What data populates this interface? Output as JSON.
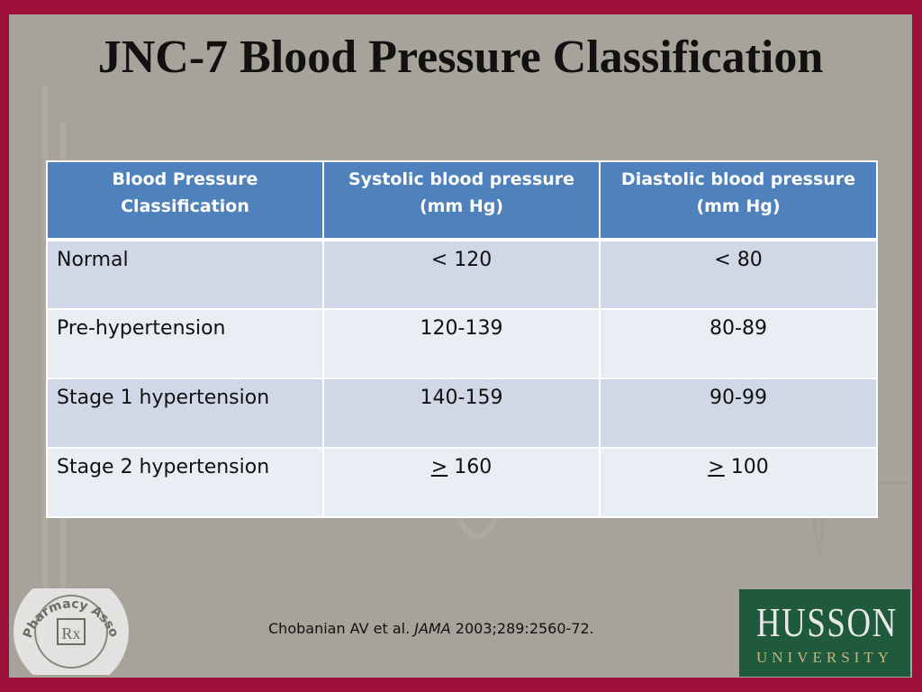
{
  "title": "JNC-7 Blood Pressure Classification",
  "table": {
    "headers": [
      {
        "line1": "Blood Pressure",
        "line2": "Classification"
      },
      {
        "line1": "Systolic blood pressure",
        "line2": "(mm Hg)"
      },
      {
        "line1": "Diastolic blood pressure",
        "line2": "(mm Hg)"
      }
    ],
    "rows": [
      {
        "classification": "Normal",
        "systolic": "< 120",
        "diastolic": "< 80"
      },
      {
        "classification": "Pre-hypertension",
        "systolic": "120-139",
        "diastolic": "80-89"
      },
      {
        "classification": "Stage 1 hypertension",
        "systolic": "140-159",
        "diastolic": "90-99"
      },
      {
        "classification": "Stage 2 hypertension",
        "systolic_symbol": ">",
        "systolic": "160",
        "diastolic_symbol": ">",
        "diastolic": "100"
      }
    ]
  },
  "citation": {
    "authors": "Chobanian AV et al.",
    "journal": "JAMA",
    "details": "2003;289:2560-72."
  },
  "logos": {
    "left": {
      "text": "Maine Pharmacy Association",
      "symbol": "Rx"
    },
    "right": {
      "name": "HUSSON",
      "subtitle": "UNIVERSITY"
    }
  },
  "colors": {
    "border": "#9b0f3a",
    "background": "#a7a29a",
    "header": "#4f81bd",
    "row_odd": "#d0d8e8",
    "row_even": "#e9edf4",
    "logo_green": "#1f5a3c"
  }
}
